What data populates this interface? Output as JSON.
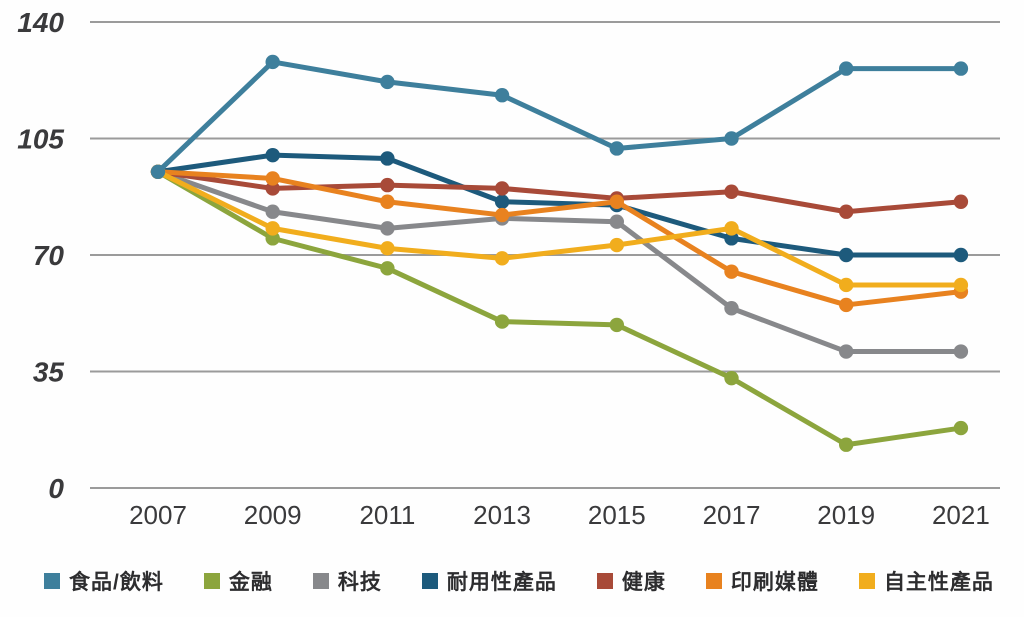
{
  "chart_data": {
    "type": "line",
    "x": [
      "2007",
      "2009",
      "2011",
      "2013",
      "2015",
      "2017",
      "2019",
      "2021"
    ],
    "yticks": [
      "0",
      "35",
      "70",
      "105",
      "140"
    ],
    "ylim": [
      0,
      140
    ],
    "grid": true,
    "legend_position": "bottom",
    "series": [
      {
        "name": "食品/飲料",
        "color": "#3e7f9c",
        "values": [
          95,
          128,
          122,
          118,
          102,
          105,
          126,
          126
        ]
      },
      {
        "name": "金融",
        "color": "#8ca53d",
        "values": [
          95,
          75,
          66,
          50,
          49,
          33,
          13,
          18
        ]
      },
      {
        "name": "科技",
        "color": "#87888b",
        "values": [
          95,
          83,
          78,
          81,
          80,
          54,
          41,
          41
        ]
      },
      {
        "name": "耐用性產品",
        "color": "#1d5a7c",
        "values": [
          95,
          100,
          99,
          86,
          85,
          75,
          70,
          70
        ]
      },
      {
        "name": "健康",
        "color": "#a84a38",
        "values": [
          95,
          90,
          91,
          90,
          87,
          89,
          83,
          86
        ]
      },
      {
        "name": "印刷媒體",
        "color": "#e8821f",
        "values": [
          95,
          93,
          86,
          82,
          86,
          65,
          55,
          59
        ]
      },
      {
        "name": "自主性產品",
        "color": "#f1ad1d",
        "values": [
          95,
          78,
          72,
          69,
          73,
          78,
          61,
          61
        ]
      }
    ],
    "colors": {
      "gridline": "#9b9b9b",
      "tick_text": "#3a3a3c",
      "legend_text": "#2d2d2f"
    }
  }
}
